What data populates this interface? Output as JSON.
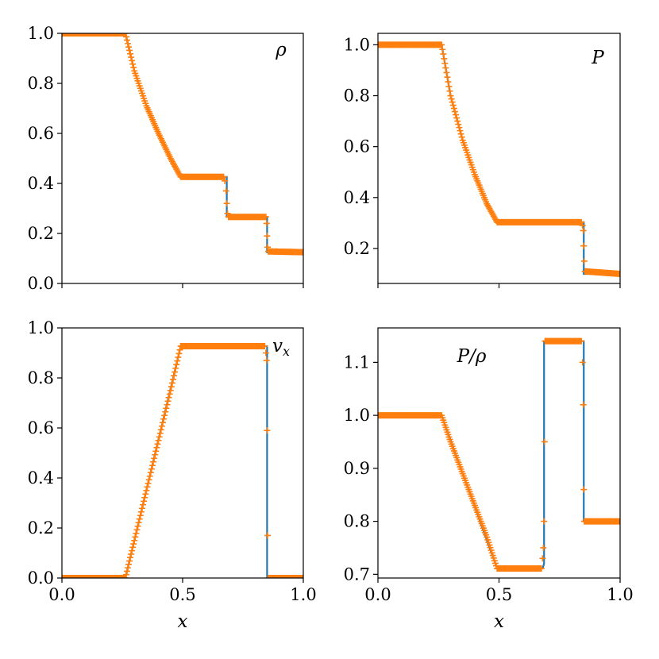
{
  "colors": {
    "line": "#1f77b4",
    "marker": "#ff7f0e",
    "axis": "#000000",
    "background": "#ffffff"
  },
  "chart_data": [
    {
      "type": "line",
      "panel_label": "ρ",
      "label_position": "top-right",
      "xlim": [
        0,
        1
      ],
      "ylim": [
        0,
        1.0
      ],
      "xticks": [
        0,
        0.5,
        1
      ],
      "xtick_labels_shown": false,
      "yticks": [
        0,
        0.2,
        0.4,
        0.6,
        0.8,
        1.0
      ],
      "ytick_labels": [
        "0.0",
        "0.2",
        "0.4",
        "0.6",
        "0.8",
        "1.0"
      ],
      "xlabel": "",
      "series": [
        {
          "style": "line",
          "x": [
            0,
            0.263,
            0.3,
            0.35,
            0.4,
            0.45,
            0.492,
            0.683,
            0.683,
            0.85,
            0.85,
            1.0
          ],
          "y": [
            1.0,
            1.0,
            0.85,
            0.71,
            0.6,
            0.5,
            0.426,
            0.426,
            0.266,
            0.266,
            0.125,
            0.125
          ]
        },
        {
          "style": "markers",
          "x": [
            0,
            0.263,
            0.3,
            0.35,
            0.4,
            0.45,
            0.492,
            0.67,
            0.675,
            0.68,
            0.683,
            0.686,
            0.69,
            0.845,
            0.848,
            0.85,
            0.852,
            0.855,
            1.0
          ],
          "y": [
            1.0,
            1.0,
            0.85,
            0.71,
            0.6,
            0.5,
            0.426,
            0.426,
            0.41,
            0.37,
            0.32,
            0.28,
            0.266,
            0.266,
            0.24,
            0.19,
            0.145,
            0.128,
            0.125
          ]
        }
      ]
    },
    {
      "type": "line",
      "panel_label": "P",
      "label_position": "top-right",
      "xlim": [
        0,
        1
      ],
      "ylim": [
        0.0625,
        1.045
      ],
      "xticks": [
        0,
        0.5,
        1
      ],
      "xtick_labels_shown": false,
      "yticks": [
        0.2,
        0.4,
        0.6,
        0.8,
        1.0
      ],
      "ytick_labels": [
        "0.2",
        "0.4",
        "0.6",
        "0.8",
        "1.0"
      ],
      "xlabel": "",
      "series": [
        {
          "style": "line",
          "x": [
            0,
            0.263,
            0.3,
            0.35,
            0.4,
            0.45,
            0.492,
            0.85,
            0.85,
            1.0
          ],
          "y": [
            1.0,
            1.0,
            0.8,
            0.625,
            0.49,
            0.375,
            0.303,
            0.303,
            0.1,
            0.1
          ]
        },
        {
          "style": "markers",
          "x": [
            0,
            0.263,
            0.3,
            0.35,
            0.4,
            0.45,
            0.492,
            0.84,
            0.845,
            0.848,
            0.85,
            0.852,
            0.855,
            1.0
          ],
          "y": [
            1.0,
            1.0,
            0.8,
            0.625,
            0.49,
            0.375,
            0.303,
            0.303,
            0.29,
            0.27,
            0.21,
            0.15,
            0.11,
            0.1
          ]
        }
      ]
    },
    {
      "type": "line",
      "panel_label": "v_x",
      "label_position": "top-right",
      "xlim": [
        0,
        1
      ],
      "ylim": [
        0,
        1.0
      ],
      "xticks": [
        0,
        0.5,
        1
      ],
      "xtick_labels": [
        "0.0",
        "0.5",
        "1.0"
      ],
      "yticks": [
        0,
        0.2,
        0.4,
        0.6,
        0.8,
        1.0
      ],
      "ytick_labels": [
        "0.0",
        "0.2",
        "0.4",
        "0.6",
        "0.8",
        "1.0"
      ],
      "xlabel": "x",
      "series": [
        {
          "style": "line",
          "x": [
            0,
            0.263,
            0.492,
            0.85,
            0.85,
            1.0
          ],
          "y": [
            0,
            0,
            0.927,
            0.927,
            0,
            0
          ]
        },
        {
          "style": "markers",
          "x": [
            0,
            0.263,
            0.3,
            0.35,
            0.4,
            0.45,
            0.492,
            0.84,
            0.845,
            0.848,
            0.85,
            0.852,
            0.855,
            1.0
          ],
          "y": [
            0,
            0,
            0.15,
            0.35,
            0.55,
            0.75,
            0.927,
            0.927,
            0.9,
            0.87,
            0.59,
            0.17,
            0.0,
            0
          ]
        }
      ]
    },
    {
      "type": "line",
      "panel_label": "P/ρ",
      "label_position": "top-left",
      "xlim": [
        0,
        1
      ],
      "ylim": [
        0.693,
        1.165
      ],
      "xticks": [
        0,
        0.5,
        1
      ],
      "xtick_labels": [
        "0.0",
        "0.5",
        "1.0"
      ],
      "yticks": [
        0.7,
        0.8,
        0.9,
        1.0,
        1.1
      ],
      "ytick_labels": [
        "0.7",
        "0.8",
        "0.9",
        "1.0",
        "1.1"
      ],
      "xlabel": "x",
      "series": [
        {
          "style": "line",
          "x": [
            0,
            0.263,
            0.492,
            0.68,
            0.686,
            0.686,
            0.69,
            0.85,
            0.85,
            1.0
          ],
          "y": [
            1.0,
            1.0,
            0.711,
            0.711,
            0.72,
            1.14,
            1.14,
            1.14,
            0.8,
            0.8
          ]
        },
        {
          "style": "markers",
          "x": [
            0,
            0.263,
            0.3,
            0.35,
            0.4,
            0.45,
            0.492,
            0.675,
            0.68,
            0.683,
            0.686,
            0.688,
            0.69,
            0.84,
            0.845,
            0.848,
            0.85,
            0.852,
            0.855,
            1.0
          ],
          "y": [
            1.0,
            1.0,
            0.95,
            0.89,
            0.83,
            0.77,
            0.711,
            0.711,
            0.73,
            0.75,
            0.8,
            0.95,
            1.14,
            1.14,
            1.1,
            1.02,
            0.86,
            0.8,
            0.8,
            0.8
          ]
        }
      ]
    }
  ]
}
